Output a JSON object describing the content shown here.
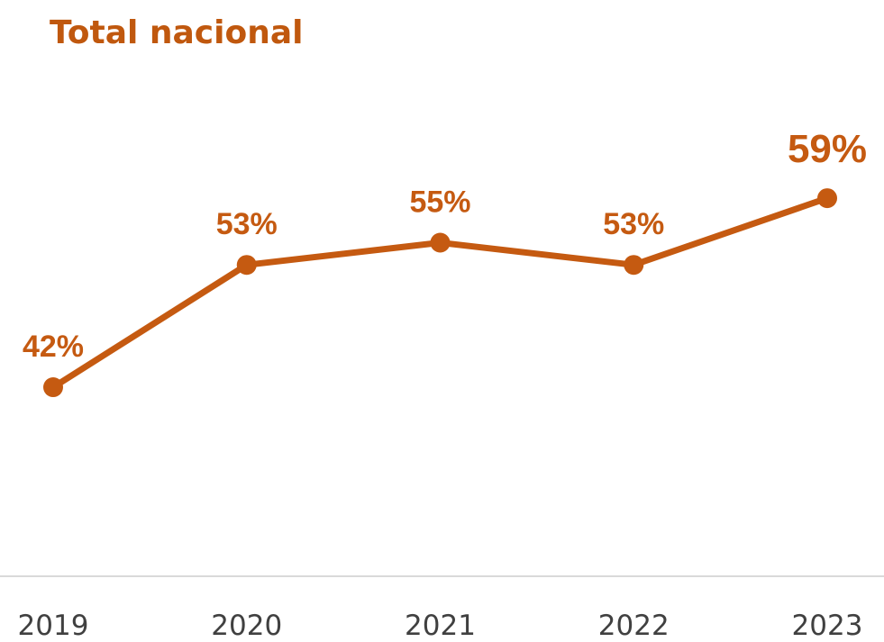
{
  "chart_data": {
    "type": "line",
    "title": "Total nacional",
    "categories": [
      "2019",
      "2020",
      "2021",
      "2022",
      "2023"
    ],
    "series": [
      {
        "name": "Total nacional",
        "color": "#c55a11",
        "values": [
          42,
          53,
          55,
          53,
          59
        ],
        "value_labels": [
          "42%",
          "53%",
          "55%",
          "53%",
          "59%"
        ]
      }
    ],
    "ylim": [
      25,
      65
    ]
  }
}
